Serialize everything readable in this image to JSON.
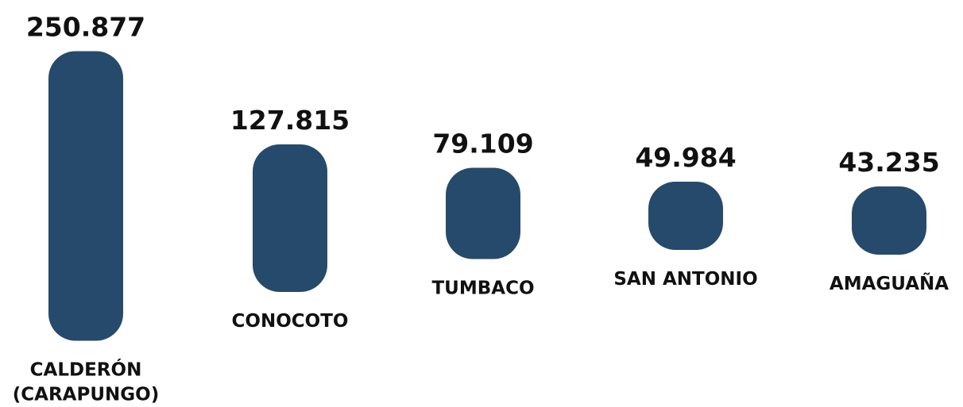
{
  "chart_data": {
    "type": "bar",
    "categories": [
      [
        "CALDERÓN",
        "(CARAPUNGO)"
      ],
      [
        "CONOCOTO"
      ],
      [
        "TUMBACO"
      ],
      [
        "SAN ANTONIO"
      ],
      [
        "AMAGUAÑA"
      ]
    ],
    "values": [
      250877,
      127815,
      79109,
      49984,
      43235
    ],
    "value_labels": [
      "250.877",
      "127.815",
      "79.109",
      "49.984",
      "43.235"
    ],
    "grid": false,
    "legend": "none",
    "colors": {
      "bar": "#264a6b",
      "text": "#111111"
    }
  }
}
